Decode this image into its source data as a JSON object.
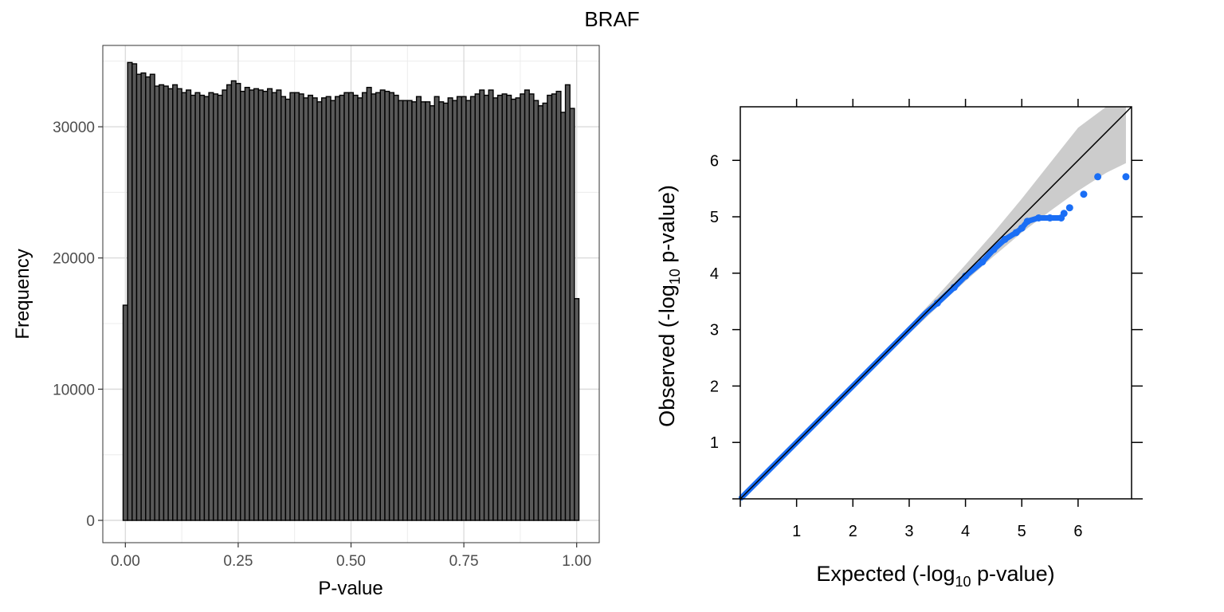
{
  "figure": {
    "title": "BRAF"
  },
  "chart_data": [
    {
      "type": "bar",
      "subtype": "histogram",
      "xlabel": "P-value",
      "ylabel": "Frequency",
      "xlim": [
        -0.05,
        1.05
      ],
      "ylim": [
        -1700,
        36200
      ],
      "x_ticks": [
        0.0,
        0.25,
        0.5,
        0.75,
        1.0
      ],
      "x_tick_labels": [
        "0.00",
        "0.25",
        "0.50",
        "0.75",
        "1.00"
      ],
      "y_ticks": [
        0,
        10000,
        20000,
        30000
      ],
      "y_tick_labels": [
        "0",
        "10000",
        "20000",
        "30000"
      ],
      "grid": true,
      "bin_start": -0.005,
      "bin_width": 0.01,
      "bar_fill": "#595959",
      "bar_stroke": "#000000",
      "values": [
        16400,
        34900,
        34800,
        34000,
        34100,
        33800,
        34000,
        33100,
        33200,
        33100,
        32900,
        33200,
        32900,
        32600,
        32800,
        32400,
        32600,
        32400,
        32300,
        32600,
        32500,
        32400,
        32800,
        33200,
        33500,
        33300,
        32700,
        33000,
        32800,
        32900,
        32800,
        32700,
        32900,
        32600,
        32800,
        32300,
        32100,
        32600,
        32600,
        32500,
        32200,
        32400,
        32200,
        31900,
        32200,
        32300,
        32000,
        32300,
        32400,
        32600,
        32600,
        32400,
        32200,
        32600,
        33000,
        32500,
        32600,
        32800,
        32700,
        32600,
        32400,
        32000,
        32000,
        32000,
        31900,
        32300,
        31900,
        31900,
        31600,
        32300,
        31900,
        31800,
        32200,
        32000,
        32300,
        32300,
        32000,
        32300,
        32500,
        32800,
        32400,
        32800,
        32200,
        32400,
        32500,
        32400,
        32100,
        32200,
        32500,
        32800,
        32500,
        32000,
        31600,
        31800,
        32400,
        32500,
        32700,
        31100,
        33200,
        31400,
        16900
      ]
    },
    {
      "type": "scatter",
      "subtype": "qq-plot",
      "xlabel_parts": [
        "Expected (-log",
        "10",
        " p-value)"
      ],
      "ylabel_parts": [
        "Observed (-log",
        "10",
        " p-value)"
      ],
      "xlim": [
        0,
        6.95
      ],
      "ylim": [
        0,
        6.95
      ],
      "x_ticks": [
        1,
        2,
        3,
        4,
        5,
        6
      ],
      "y_ticks": [
        1,
        2,
        3,
        4,
        5,
        6
      ],
      "x_tick_labels": [
        "1",
        "2",
        "3",
        "4",
        "5",
        "6"
      ],
      "y_tick_labels": [
        "1",
        "2",
        "3",
        "4",
        "5",
        "6"
      ],
      "point_color": "#1a6ef5",
      "band_color": "#cccccc",
      "reference_line": "y = x",
      "confidence_band": {
        "x": [
          0,
          1,
          2,
          3,
          3.5,
          4,
          4.5,
          5,
          5.5,
          6,
          6.5,
          6.85
        ],
        "upper": [
          0,
          1.02,
          2.04,
          3.07,
          3.6,
          4.15,
          4.72,
          5.32,
          5.95,
          6.58,
          6.95,
          6.95
        ],
        "lower": [
          0,
          0.98,
          1.96,
          2.93,
          3.4,
          3.86,
          4.3,
          4.72,
          5.1,
          5.46,
          5.78,
          5.95
        ]
      },
      "points_curve": {
        "x": [
          0.02,
          0.5,
          1,
          1.5,
          2,
          2.5,
          3,
          3.3,
          3.5,
          3.8,
          4.0,
          4.3,
          4.5,
          4.7,
          4.9,
          5.0,
          5.1,
          5.3,
          5.5,
          5.7
        ],
        "y": [
          0.02,
          0.5,
          1,
          1.5,
          2,
          2.5,
          3,
          3.3,
          3.47,
          3.75,
          3.95,
          4.2,
          4.42,
          4.6,
          4.72,
          4.8,
          4.92,
          4.98,
          4.98,
          4.98
        ]
      },
      "points_sparse": {
        "x": [
          5.75,
          5.85,
          6.1,
          6.35,
          6.85
        ],
        "y": [
          5.06,
          5.16,
          5.4,
          5.71,
          5.71
        ]
      }
    }
  ]
}
